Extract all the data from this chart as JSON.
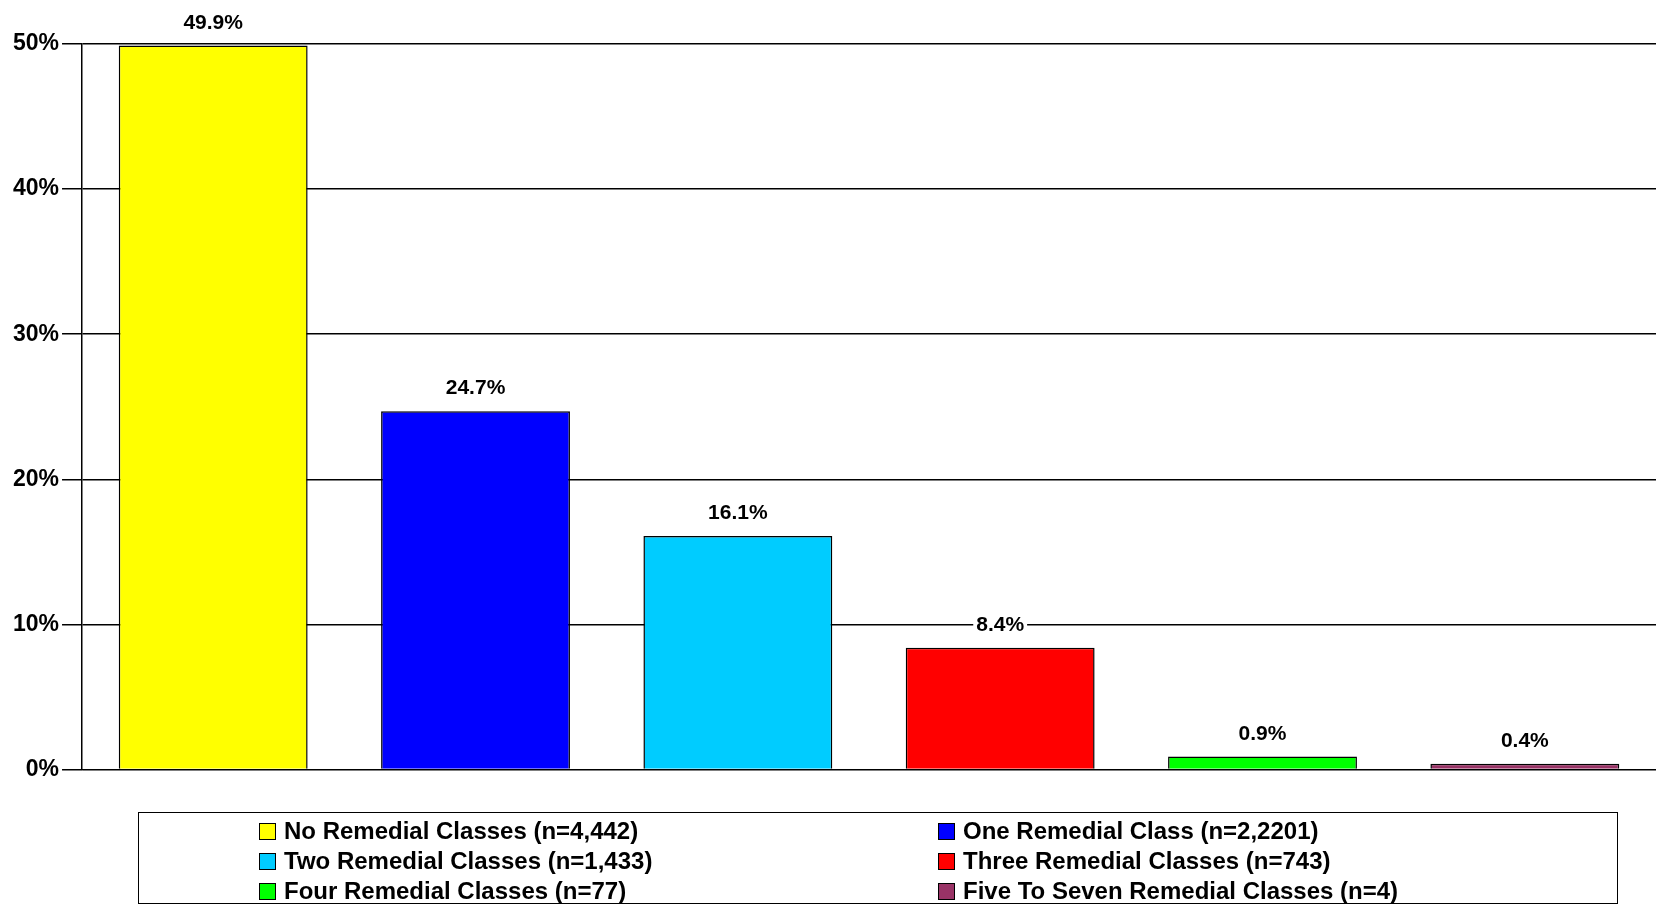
{
  "chart_data": {
    "type": "bar",
    "categories": [
      null,
      null,
      null,
      null,
      null,
      null
    ],
    "series": [
      {
        "name": "No Remedial Classes (n=4,442)",
        "color": "#ffff00",
        "values": [
          49.9,
          null,
          null,
          null,
          null,
          null
        ]
      },
      {
        "name": "One Remedial Class (n=2,2201)",
        "color": "#0000ff",
        "values": [
          null,
          24.7,
          null,
          null,
          null,
          null
        ]
      },
      {
        "name": "Two Remedial Classes (n=1,433)",
        "color": "#00ccff",
        "values": [
          null,
          null,
          16.1,
          null,
          null,
          null
        ]
      },
      {
        "name": "Three Remedial Classes (n=743)",
        "color": "#ff0000",
        "values": [
          null,
          null,
          null,
          8.4,
          null,
          null
        ]
      },
      {
        "name": "Four Remedial Classes (n=77)",
        "color": "#00ff00",
        "values": [
          null,
          null,
          null,
          null,
          0.9,
          null
        ]
      },
      {
        "name": "Five To Seven Remedial Classes (n=4)",
        "color": "#993366",
        "values": [
          null,
          null,
          null,
          null,
          null,
          0.4
        ]
      }
    ],
    "value_labels": [
      "49.9%",
      "24.7%",
      "16.1%",
      "8.4%",
      "0.9%",
      "0.4%"
    ],
    "ylim": [
      0,
      50
    ],
    "yticks": [
      {
        "value": 0,
        "label": "0%"
      },
      {
        "value": 10,
        "label": "10%"
      },
      {
        "value": 20,
        "label": "20%"
      },
      {
        "value": 30,
        "label": "30%"
      },
      {
        "value": 40,
        "label": "40%"
      },
      {
        "value": 50,
        "label": "50%"
      }
    ],
    "grid": "y",
    "legend": "bottom"
  }
}
